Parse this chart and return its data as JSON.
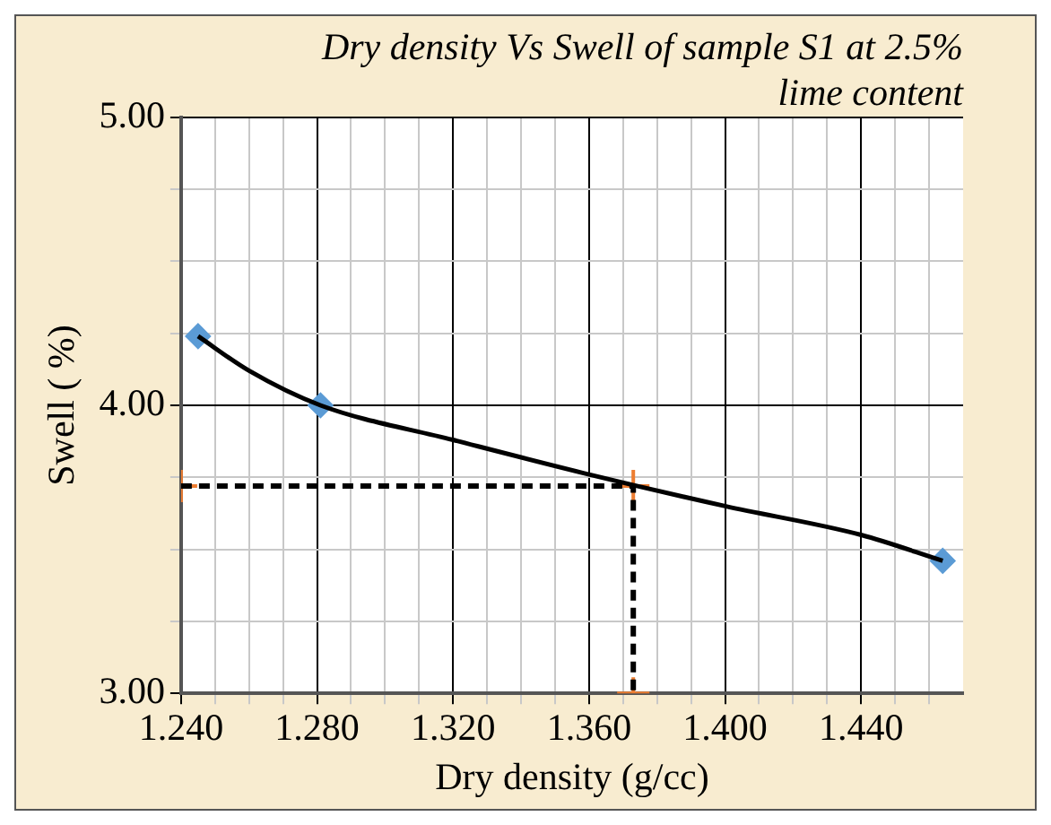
{
  "chart_data": {
    "type": "line",
    "title": "Dry density Vs Swell of sample S1 at 2.5% lime content",
    "xlabel": "Dry density (g/cc)",
    "ylabel": "Swell ( %)",
    "xlim": [
      1.24,
      1.47
    ],
    "xticks": [
      {
        "value": 1.24,
        "label": "1.240"
      },
      {
        "value": 1.25,
        "label": null
      },
      {
        "value": 1.26,
        "label": null
      },
      {
        "value": 1.27,
        "label": null
      },
      {
        "value": 1.28,
        "label": "1.280"
      },
      {
        "value": 1.29,
        "label": null
      },
      {
        "value": 1.3,
        "label": null
      },
      {
        "value": 1.31,
        "label": null
      },
      {
        "value": 1.32,
        "label": "1.320"
      },
      {
        "value": 1.33,
        "label": null
      },
      {
        "value": 1.34,
        "label": null
      },
      {
        "value": 1.35,
        "label": null
      },
      {
        "value": 1.36,
        "label": "1.360"
      },
      {
        "value": 1.37,
        "label": null
      },
      {
        "value": 1.38,
        "label": null
      },
      {
        "value": 1.39,
        "label": null
      },
      {
        "value": 1.4,
        "label": "1.400"
      },
      {
        "value": 1.41,
        "label": null
      },
      {
        "value": 1.42,
        "label": null
      },
      {
        "value": 1.43,
        "label": null
      },
      {
        "value": 1.44,
        "label": "1.440"
      },
      {
        "value": 1.45,
        "label": null
      },
      {
        "value": 1.46,
        "label": null
      }
    ],
    "ylim": [
      3,
      5
    ],
    "yticks": [
      {
        "value": 3,
        "label": "3.00"
      },
      {
        "value": 3.25,
        "label": null
      },
      {
        "value": 3.5,
        "label": null
      },
      {
        "value": 3.75,
        "label": null
      },
      {
        "value": 4,
        "label": "4.00"
      },
      {
        "value": 4.25,
        "label": null
      },
      {
        "value": 4.5,
        "label": null
      },
      {
        "value": 4.75,
        "label": null
      },
      {
        "value": 5,
        "label": "5.00"
      }
    ],
    "grid": true,
    "legend": false,
    "series": [
      {
        "color": "#000000",
        "marker": "none",
        "line_style": "solid",
        "x": [
          1.245,
          1.26,
          1.281,
          1.32,
          1.36,
          1.4,
          1.44,
          1.464
        ],
        "values": [
          4.24,
          4.12,
          4.0,
          3.88,
          3.76,
          3.65,
          3.55,
          3.46
        ]
      },
      {
        "type": "scatter",
        "color": "#5b9bd5",
        "marker": "diamond",
        "x": [
          1.245,
          1.281,
          1.464
        ],
        "values": [
          4.24,
          4.0,
          3.46
        ]
      },
      {
        "color": "#000000",
        "marker": "none",
        "line_style": "dashed",
        "x": [
          1.24,
          1.373,
          1.373
        ],
        "values": [
          3.72,
          3.72,
          3.0
        ]
      },
      {
        "type": "scatter",
        "color": "#ed7d31",
        "marker": "cross",
        "x": [
          1.24,
          1.373,
          1.373
        ],
        "values": [
          3.72,
          3.72,
          3.0
        ]
      }
    ]
  }
}
